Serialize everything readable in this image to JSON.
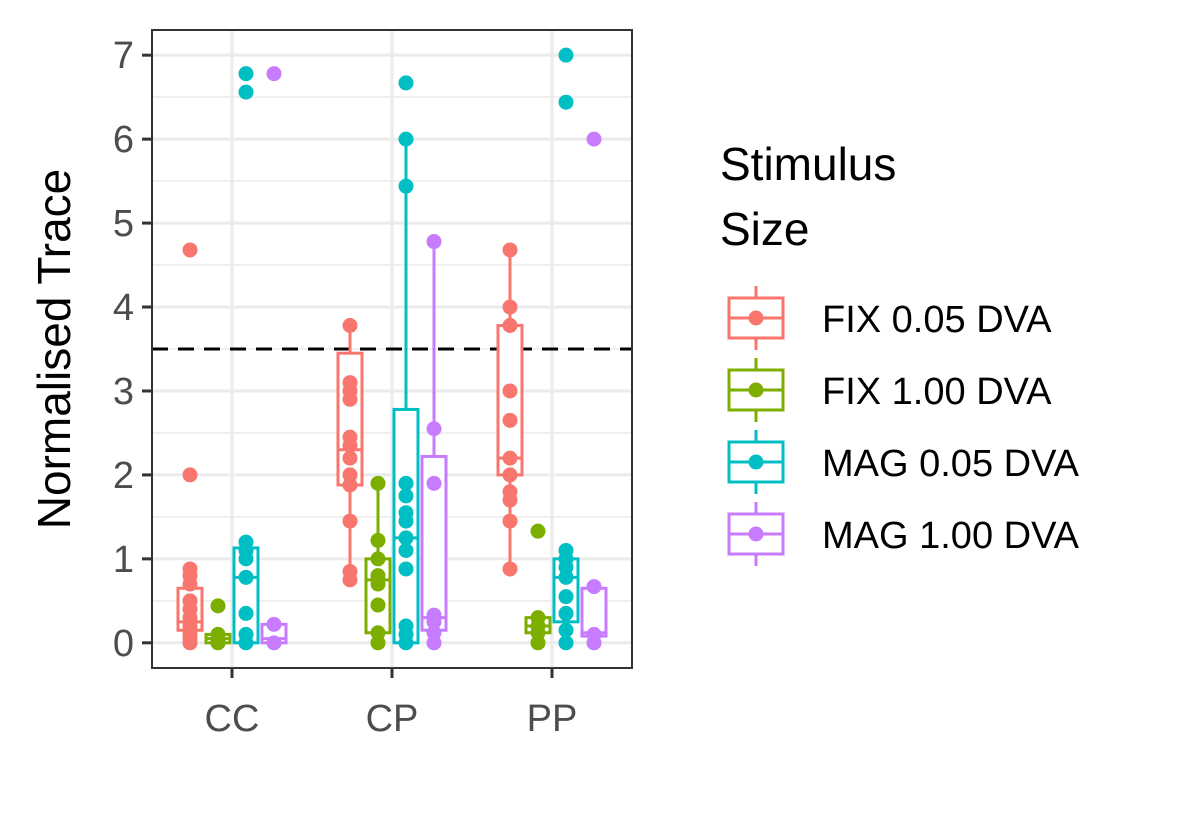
{
  "chart_data": {
    "type": "box",
    "ylabel": "Normalised Trace",
    "xlabel": "",
    "categories": [
      "CC",
      "CP",
      "PP"
    ],
    "y_ticks": [
      "0",
      "1",
      "2",
      "3",
      "4",
      "5",
      "6",
      "7"
    ],
    "ylim": [
      -0.3,
      7.3
    ],
    "grid": true,
    "reference_line": {
      "y": 3.5,
      "style": "dashed"
    },
    "legend": {
      "title_lines": [
        "Stimulus",
        "Size"
      ],
      "position": "right"
    },
    "series": [
      {
        "name": "FIX 0.05 DVA",
        "color": "#F8766D",
        "boxes": [
          {
            "category": "CC",
            "lower": 0.15,
            "q1": 0.15,
            "median": 0.25,
            "q3": 0.65,
            "upper": 0.9
          },
          {
            "category": "CP",
            "lower": 0.75,
            "q1": 1.88,
            "median": 2.3,
            "q3": 3.45,
            "upper": 3.78
          },
          {
            "category": "PP",
            "lower": 0.88,
            "q1": 2.0,
            "median": 2.2,
            "q3": 3.78,
            "upper": 4.68
          }
        ],
        "points": [
          {
            "category": "CC",
            "values": [
              0,
              0.05,
              0.1,
              0.15,
              0.2,
              0.3,
              0.4,
              0.5,
              0.7,
              0.8,
              0.88,
              2.0,
              4.68
            ]
          },
          {
            "category": "CP",
            "values": [
              0.75,
              0.85,
              1.45,
              1.88,
              2.0,
              2.2,
              2.35,
              2.45,
              2.9,
              3.0,
              3.1,
              3.78
            ]
          },
          {
            "category": "PP",
            "values": [
              0.88,
              1.45,
              1.7,
              1.8,
              2.0,
              2.2,
              2.65,
              3.0,
              3.78,
              4.0,
              4.68
            ]
          }
        ]
      },
      {
        "name": "FIX 1.00 DVA",
        "color": "#7CAE00",
        "boxes": [
          {
            "category": "CC",
            "lower": 0.0,
            "q1": 0.0,
            "median": 0.05,
            "q3": 0.1,
            "upper": 0.1
          },
          {
            "category": "CP",
            "lower": 0.0,
            "q1": 0.12,
            "median": 0.75,
            "q3": 1.0,
            "upper": 1.9
          },
          {
            "category": "PP",
            "lower": 0.0,
            "q1": 0.12,
            "median": 0.2,
            "q3": 0.3,
            "upper": 0.33
          }
        ],
        "points": [
          {
            "category": "CC",
            "values": [
              0,
              0.02,
              0.05,
              0.1,
              0.44
            ]
          },
          {
            "category": "CP",
            "values": [
              0,
              0.12,
              0.45,
              0.7,
              0.8,
              1.0,
              1.22,
              1.9
            ]
          },
          {
            "category": "PP",
            "values": [
              0,
              0.12,
              0.2,
              0.3,
              1.33
            ]
          }
        ]
      },
      {
        "name": "MAG 0.05 DVA",
        "color": "#00BFC4",
        "boxes": [
          {
            "category": "CC",
            "lower": 0.0,
            "q1": 0.0,
            "median": 0.78,
            "q3": 1.13,
            "upper": 1.2
          },
          {
            "category": "CP",
            "lower": 0.0,
            "q1": 0.0,
            "median": 1.25,
            "q3": 2.78,
            "upper": 6.0
          },
          {
            "category": "PP",
            "lower": 0.0,
            "q1": 0.25,
            "median": 0.78,
            "q3": 1.0,
            "upper": 1.1
          }
        ],
        "points": [
          {
            "category": "CC",
            "values": [
              0,
              0.1,
              0.35,
              0.78,
              1.0,
              1.1,
              1.2,
              6.56,
              6.78
            ]
          },
          {
            "category": "CP",
            "values": [
              0,
              0.1,
              0.2,
              0.88,
              1.1,
              1.25,
              1.45,
              1.55,
              1.75,
              1.9,
              5.44,
              6.0,
              6.67
            ]
          },
          {
            "category": "PP",
            "values": [
              0,
              0.15,
              0.35,
              0.55,
              0.78,
              0.9,
              1.0,
              1.1,
              6.44,
              7.0
            ]
          }
        ]
      },
      {
        "name": "MAG 1.00 DVA",
        "color": "#C77CFF",
        "boxes": [
          {
            "category": "CC",
            "lower": 0.0,
            "q1": 0.0,
            "median": 0.05,
            "q3": 0.22,
            "upper": 0.22
          },
          {
            "category": "CP",
            "lower": 0.0,
            "q1": 0.15,
            "median": 0.3,
            "q3": 2.22,
            "upper": 4.78
          },
          {
            "category": "PP",
            "lower": 0.0,
            "q1": 0.08,
            "median": 0.12,
            "q3": 0.65,
            "upper": 0.67
          }
        ],
        "points": [
          {
            "category": "CC",
            "values": [
              0,
              0.22,
              6.78
            ]
          },
          {
            "category": "CP",
            "values": [
              0,
              0.12,
              0.25,
              0.33,
              1.9,
              2.55,
              4.78
            ]
          },
          {
            "category": "PP",
            "values": [
              0,
              0.1,
              0.67,
              6.0
            ]
          }
        ]
      }
    ]
  }
}
